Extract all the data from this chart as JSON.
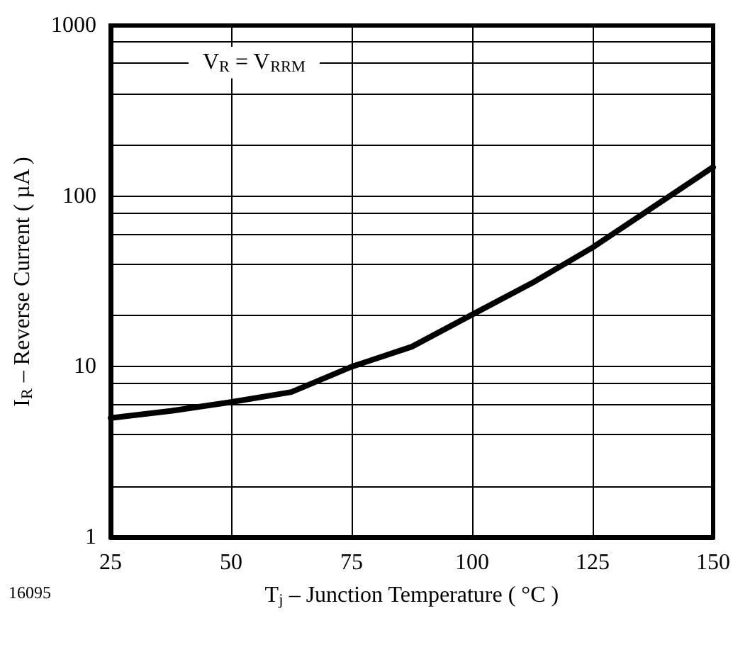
{
  "chart_data": {
    "type": "line",
    "xlabel": "T$_{j}$ – Junction Temperature ( °C )",
    "ylabel": "I$_{R}$ – Reverse Current ( µA )",
    "annotations": [
      "V$_{R}$ = V$_{RRM}$",
      "16095"
    ],
    "x": [
      25,
      37.5,
      50,
      62.5,
      75,
      87.5,
      100,
      112.5,
      125,
      137.5,
      150
    ],
    "series": [
      {
        "color": "#000000",
        "values": [
          5.0,
          5.5,
          6.2,
          7.1,
          10,
          13.1,
          20.2,
          31,
          50,
          86,
          148
        ]
      }
    ],
    "xlim": [
      25,
      150
    ],
    "xticks": [
      25,
      50,
      75,
      100,
      125,
      150
    ],
    "ylim": [
      1,
      1000
    ],
    "yticks": [
      1,
      {
        "value": 2,
        "label": null
      },
      {
        "value": 4,
        "label": null
      },
      {
        "value": 6,
        "label": null
      },
      {
        "value": 8,
        "label": null
      },
      10,
      {
        "value": 20,
        "label": null
      },
      {
        "value": 40,
        "label": null
      },
      {
        "value": 60,
        "label": null
      },
      {
        "value": 80,
        "label": null
      },
      100,
      {
        "value": 200,
        "label": null
      },
      {
        "value": 400,
        "label": null
      },
      {
        "value": 600,
        "label": null
      },
      {
        "value": 800,
        "label": null
      },
      1000
    ],
    "log": "y",
    "grid": true,
    "marker": "none",
    "line_style": "solid"
  }
}
